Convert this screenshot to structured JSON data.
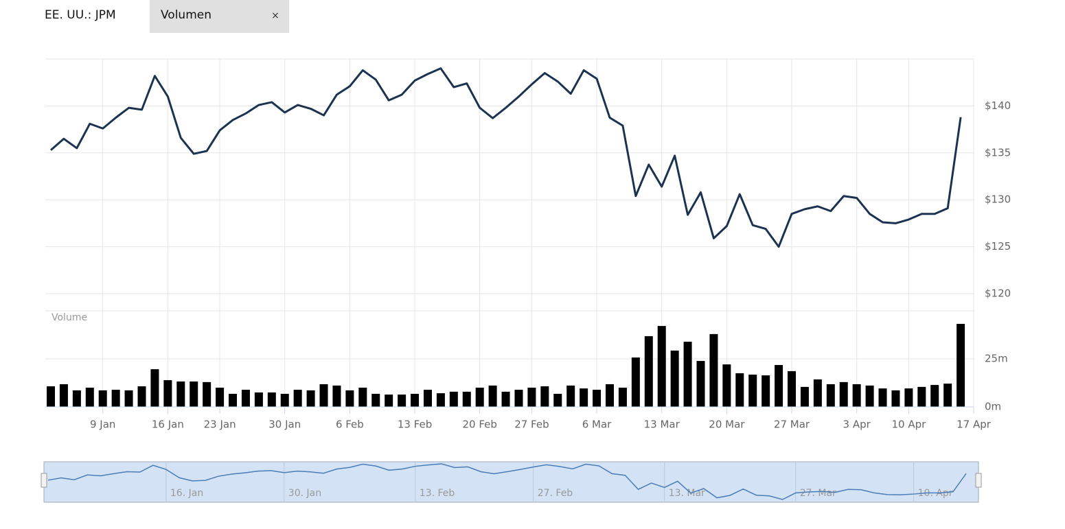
{
  "header": {
    "symbol": "EE. UU.: JPM",
    "tab": "Volumen",
    "close": "×"
  },
  "chart_data": [
    {
      "type": "line",
      "categories": [
        null,
        null,
        null,
        null,
        "9 Jan",
        null,
        null,
        null,
        null,
        "16 Jan",
        null,
        null,
        null,
        "23 Jan",
        null,
        null,
        null,
        null,
        "30 Jan",
        null,
        null,
        null,
        null,
        "6 Feb",
        null,
        null,
        null,
        null,
        "13 Feb",
        null,
        null,
        null,
        null,
        "20 Feb",
        null,
        null,
        null,
        "27 Feb",
        null,
        null,
        null,
        null,
        "6 Mar",
        null,
        null,
        null,
        null,
        "13 Mar",
        null,
        null,
        null,
        null,
        "20 Mar",
        null,
        null,
        null,
        null,
        "27 Mar",
        null,
        null,
        null,
        null,
        "3 Apr",
        null,
        null,
        null,
        "10 Apr",
        null,
        null,
        null,
        null,
        "17 Apr"
      ],
      "series": [
        {
          "color": "#1b3350",
          "values": [
            135.3,
            136.5,
            135.5,
            138.1,
            137.6,
            138.75,
            139.8,
            139.6,
            143.2,
            141.0,
            136.6,
            134.9,
            135.2,
            137.4,
            138.5,
            139.2,
            140.1,
            140.4,
            139.3,
            140.1,
            139.7,
            139.0,
            141.2,
            142.1,
            143.8,
            142.8,
            140.6,
            141.2,
            142.7,
            143.4,
            144.0,
            142.0,
            142.4,
            139.8,
            138.7,
            139.8,
            141.0,
            142.3,
            143.5,
            142.6,
            141.3,
            143.8,
            142.9,
            138.75,
            137.9,
            130.4,
            133.75,
            131.4,
            134.7,
            128.4,
            130.8,
            125.9,
            127.2,
            130.6,
            127.3,
            126.9,
            125.0,
            128.5,
            129.0,
            129.3,
            128.8,
            130.4,
            130.2,
            128.5,
            127.6,
            127.5,
            127.9,
            128.5,
            128.5,
            129.1,
            138.8,
            null
          ]
        }
      ],
      "ylim": [
        120,
        145
      ],
      "yticks": [
        {
          "value": 120,
          "label": "$120"
        },
        {
          "value": 125,
          "label": "$125"
        },
        {
          "value": 130,
          "label": "$130"
        },
        {
          "value": 135,
          "label": "$135"
        },
        {
          "value": 140,
          "label": "$140"
        }
      ],
      "grid": true
    },
    {
      "type": "bar",
      "title": "Volume",
      "color": "#000000",
      "values": [
        10.7,
        11.8,
        8.6,
        10,
        8.6,
        8.9,
        8.6,
        10.7,
        19.6,
        13.9,
        13.2,
        13.2,
        12.9,
        10,
        6.8,
        8.9,
        7.5,
        7.5,
        6.8,
        8.9,
        8.6,
        11.8,
        11.1,
        8.6,
        10,
        6.8,
        6.4,
        6.4,
        6.8,
        8.9,
        7.1,
        7.9,
        7.9,
        10,
        11.1,
        7.9,
        8.9,
        10,
        10.7,
        6.8,
        11.1,
        9.6,
        8.9,
        11.8,
        10,
        25.7,
        36.8,
        42.1,
        29.3,
        33.9,
        23.9,
        37.9,
        22.1,
        17.5,
        16.8,
        16.4,
        21.8,
        18.6,
        10.4,
        14.3,
        11.8,
        12.9,
        11.8,
        11.1,
        9.6,
        8.6,
        9.6,
        10.4,
        11.4,
        12.1,
        43.2,
        null
      ],
      "ylim": [
        0,
        50
      ],
      "yticks": [
        {
          "value": 0,
          "label": "0m"
        },
        {
          "value": 25,
          "label": "25m"
        }
      ],
      "grid": true
    }
  ],
  "navigator": {
    "labels": [
      "16. Jan",
      "30. Jan",
      "13. Feb",
      "27. Feb",
      "13. Mar",
      "27. Mar",
      "10. Apr"
    ]
  }
}
